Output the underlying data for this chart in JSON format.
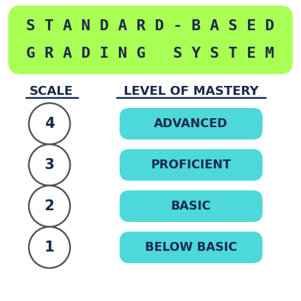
{
  "title_line1": "S T A N D A R D - B A S E D",
  "title_line2": "G R A D I N G   S Y S T E M",
  "title_bg_color": "#aaff55",
  "title_text_color": "#1a2a4a",
  "scale_label": "SCALE",
  "mastery_label": "LEVEL OF MASTERY",
  "header_text_color": "#1a2a4a",
  "circles": [
    "4",
    "3",
    "2",
    "1"
  ],
  "circle_text_color": "#1a2a4a",
  "circle_edge_color": "#555555",
  "levels": [
    "ADVANCED",
    "PROFICIENT",
    "BASIC",
    "BELOW BASIC"
  ],
  "level_bg_color": "#4dd9d9",
  "level_text_color": "#1a2a4a",
  "bg_color": "#ffffff"
}
